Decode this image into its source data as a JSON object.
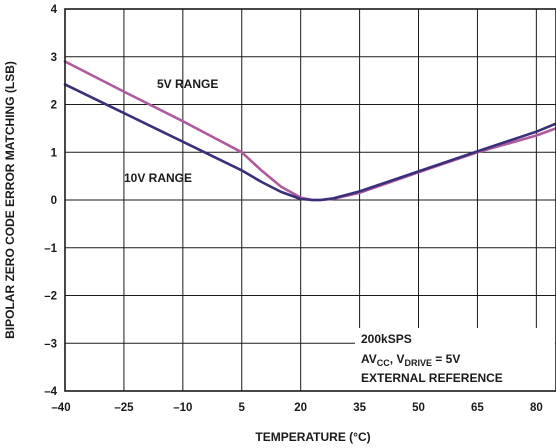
{
  "chart_data": {
    "type": "line",
    "title": "",
    "xlabel": "TEMPERATURE (°C)",
    "ylabel": "BIPOLAR ZERO CODE ERROR MATCHING (LSB)",
    "xlim": [
      -40,
      85
    ],
    "ylim": [
      -4,
      4
    ],
    "xticks": [
      -40,
      -25,
      -10,
      5,
      20,
      35,
      50,
      65,
      80
    ],
    "xtick_labels": [
      "–40",
      "–25",
      "–10",
      "5",
      "20",
      "35",
      "50",
      "65",
      "80"
    ],
    "yticks": [
      -4,
      -3,
      -2,
      -1,
      0,
      1,
      2,
      3,
      4
    ],
    "ytick_labels": [
      "–4",
      "–3",
      "–2",
      "–1",
      "0",
      "1",
      "2",
      "3",
      "4"
    ],
    "grid": true,
    "series": [
      {
        "name": "5V RANGE",
        "color": "#b05a9e",
        "x": [
          -40,
          -25,
          -10,
          5,
          10,
          15,
          20,
          23,
          25,
          28,
          35,
          50,
          65,
          80,
          85
        ],
        "y": [
          2.9,
          2.27,
          1.65,
          1.0,
          0.62,
          0.28,
          0.05,
          0.0,
          0.0,
          0.02,
          0.15,
          0.58,
          1.0,
          1.35,
          1.5
        ]
      },
      {
        "name": "10V RANGE",
        "color": "#3a2f7a",
        "x": [
          -40,
          -25,
          -10,
          5,
          10,
          15,
          20,
          23,
          25,
          28,
          35,
          50,
          65,
          80,
          85
        ],
        "y": [
          2.42,
          1.82,
          1.22,
          0.62,
          0.38,
          0.17,
          0.02,
          0.0,
          0.0,
          0.03,
          0.18,
          0.6,
          1.02,
          1.43,
          1.6
        ]
      }
    ],
    "annotations": {
      "line1": "200kSPS",
      "line2_parts": [
        "AV",
        "CC",
        ", V",
        "DRIVE",
        " = 5V"
      ],
      "line3": "EXTERNAL REFERENCE"
    }
  }
}
